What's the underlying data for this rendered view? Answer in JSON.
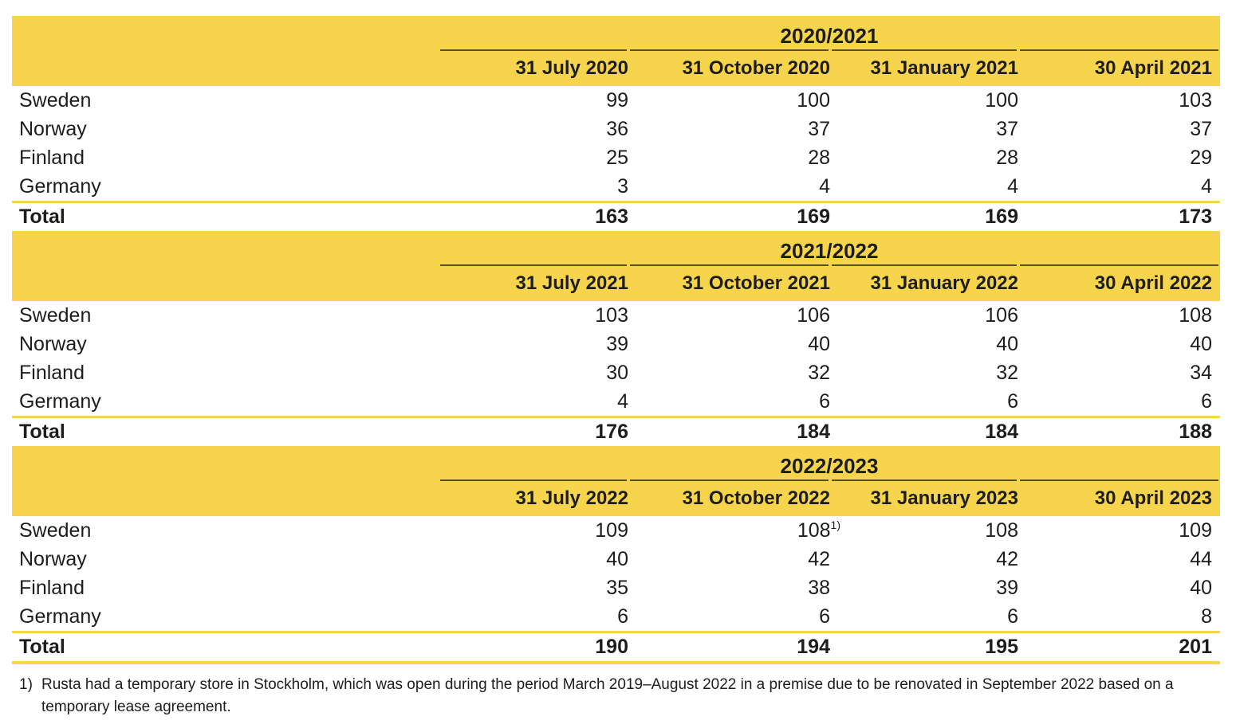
{
  "theme": {
    "brand_yellow": "#F6D54D",
    "text_color": "#1D1D1B",
    "header_underline": "dark-olive-on-yellow"
  },
  "tables": [
    {
      "fiscal_year": "2020/2021",
      "columns": [
        "31 July 2020",
        "31 October 2020",
        "31 January 2021",
        "30 April 2021"
      ],
      "rows": [
        {
          "label": "Sweden",
          "values": [
            "99",
            "100",
            "100",
            "103"
          ]
        },
        {
          "label": "Norway",
          "values": [
            "36",
            "37",
            "37",
            "37"
          ]
        },
        {
          "label": "Finland",
          "values": [
            "25",
            "28",
            "28",
            "29"
          ]
        },
        {
          "label": "Germany",
          "values": [
            "3",
            "4",
            "4",
            "4"
          ]
        }
      ],
      "total": {
        "label": "Total",
        "values": [
          "163",
          "169",
          "169",
          "173"
        ]
      }
    },
    {
      "fiscal_year": "2021/2022",
      "columns": [
        "31 July 2021",
        "31 October 2021",
        "31 January 2022",
        "30 April 2022"
      ],
      "rows": [
        {
          "label": "Sweden",
          "values": [
            "103",
            "106",
            "106",
            "108"
          ]
        },
        {
          "label": "Norway",
          "values": [
            "39",
            "40",
            "40",
            "40"
          ]
        },
        {
          "label": "Finland",
          "values": [
            "30",
            "32",
            "32",
            "34"
          ]
        },
        {
          "label": "Germany",
          "values": [
            "4",
            "6",
            "6",
            "6"
          ]
        }
      ],
      "total": {
        "label": "Total",
        "values": [
          "176",
          "184",
          "184",
          "188"
        ]
      }
    },
    {
      "fiscal_year": "2022/2023",
      "columns": [
        "31 July 2022",
        "31 October 2022",
        "31 January 2023",
        "30 April 2023"
      ],
      "rows": [
        {
          "label": "Sweden",
          "values": [
            "109",
            "108",
            "108",
            "109"
          ],
          "footnote_marker": "1)"
        },
        {
          "label": "Norway",
          "values": [
            "40",
            "42",
            "42",
            "44"
          ]
        },
        {
          "label": "Finland",
          "values": [
            "35",
            "38",
            "39",
            "40"
          ]
        },
        {
          "label": "Germany",
          "values": [
            "6",
            "6",
            "6",
            "8"
          ]
        }
      ],
      "total": {
        "label": "Total",
        "values": [
          "190",
          "194",
          "195",
          "201"
        ]
      }
    }
  ],
  "footnote": {
    "marker": "1)",
    "text": "Rusta had a temporary store in Stockholm, which was open during the period March 2019–August 2022 in a premise due to be renovated in September 2022 based on a temporary lease agreement."
  }
}
